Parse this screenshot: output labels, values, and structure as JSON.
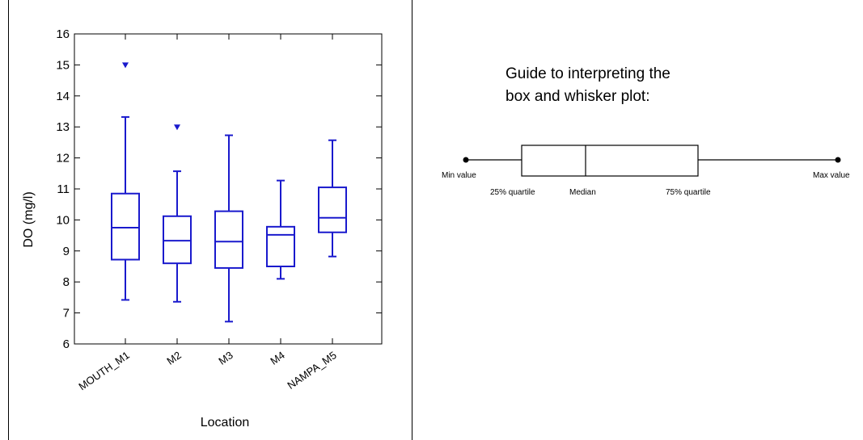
{
  "chart_data": {
    "type": "box",
    "title": "",
    "xlabel": "Location",
    "ylabel": "DO (mg/l)",
    "ylim": [
      6,
      16
    ],
    "yticks": [
      "6",
      "7",
      "8",
      "9",
      "10",
      "11",
      "12",
      "13",
      "14",
      "15",
      "16"
    ],
    "categories": [
      "MOUTH_M1",
      "M2",
      "M3",
      "M4",
      "NAMPA_M5"
    ],
    "boxes": [
      {
        "min": 7.42,
        "q1": 8.72,
        "median": 9.75,
        "q3": 10.85,
        "max": 13.32,
        "outliers": [
          15.0
        ]
      },
      {
        "min": 7.36,
        "q1": 8.6,
        "median": 9.33,
        "q3": 10.12,
        "max": 11.57,
        "outliers": [
          13.0
        ]
      },
      {
        "min": 6.72,
        "q1": 8.45,
        "median": 9.3,
        "q3": 10.28,
        "max": 12.73,
        "outliers": []
      },
      {
        "min": 8.1,
        "q1": 8.5,
        "median": 9.52,
        "q3": 9.78,
        "max": 11.27,
        "outliers": []
      },
      {
        "min": 8.82,
        "q1": 9.6,
        "median": 10.07,
        "q3": 11.05,
        "max": 12.57,
        "outliers": []
      }
    ],
    "grid": false,
    "color": "#1a1acd"
  },
  "guide": {
    "title_line1": "Guide to interpreting the",
    "title_line2": "box and whisker plot:",
    "min_label": "Min value",
    "q1_label": "25% quartile",
    "median_label": "Median",
    "q3_label": "75% quartile",
    "max_label": "Max value"
  }
}
